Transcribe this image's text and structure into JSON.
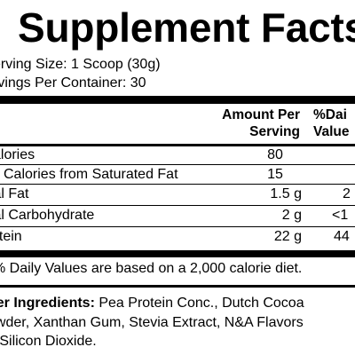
{
  "title": "Supplement Facts",
  "serving_size": "erving Size: 1 Scoop (30g)",
  "servings_per_container": "rvings Per Container: 30",
  "headers": {
    "amount_line1": "Amount Per",
    "amount_line2": "Serving",
    "dv_line1": "%Dai",
    "dv_line2": "Value"
  },
  "rows": [
    {
      "name": "alories",
      "amount": "80",
      "dv": ""
    },
    {
      "name": "Calories from Saturated Fat",
      "amount": "15",
      "dv": ""
    },
    {
      "name": "tal Fat",
      "amount": "1.5 g",
      "dv": "2"
    },
    {
      "name": "tal Carbohydrate",
      "amount": "2 g",
      "dv": "<1"
    },
    {
      "name": "otein",
      "amount": "22 g",
      "dv": "44"
    }
  ],
  "footnote": "% Daily Values are based on a 2,000 calorie diet.",
  "ingredients": {
    "label": "her Ingredients:",
    "line1": " Pea Protein Conc., Dutch Cocoa",
    "line2": "owder, Xanthan Gum, Stevia Extract, N&A Flavors",
    "line3": "d Silicon Dioxide."
  }
}
